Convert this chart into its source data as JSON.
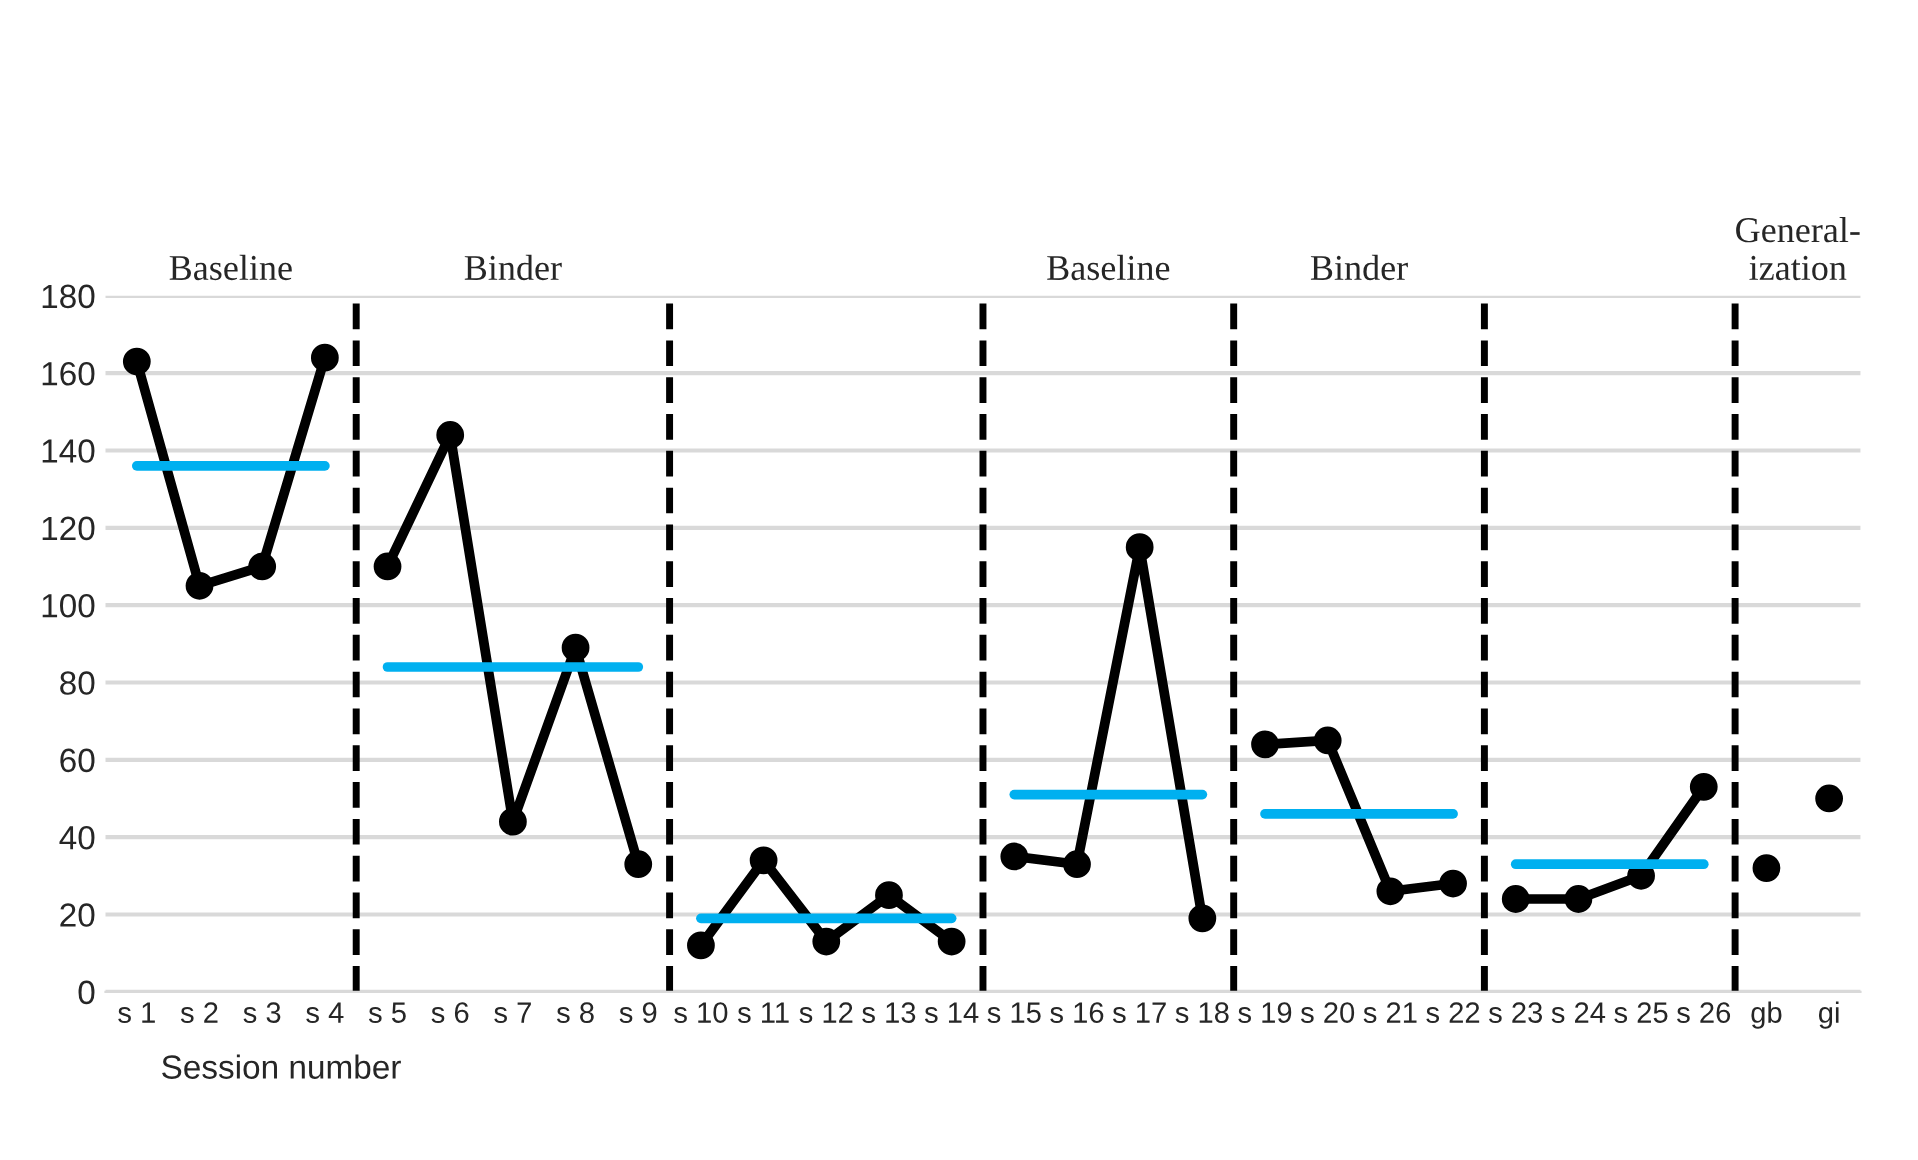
{
  "chart_data": {
    "type": "line",
    "xlabel": "Session number",
    "categories": [
      "s 1",
      "s 2",
      "s 3",
      "s 4",
      "s 5",
      "s 6",
      "s 7",
      "s 8",
      "s 9",
      "s 10",
      "s 11",
      "s 12",
      "s 13",
      "s 14",
      "s 15",
      "s 16",
      "s 17",
      "s 18",
      "s 19",
      "s 20",
      "s 21",
      "s 22",
      "s 23",
      "s 24",
      "s 25",
      "s 26",
      "gb",
      "gi"
    ],
    "series": [
      {
        "color": "#000000",
        "values": [
          163,
          105,
          110,
          164,
          null,
          null,
          null,
          null,
          null,
          null,
          null,
          null,
          null,
          null,
          null,
          null,
          null,
          null,
          null,
          null,
          null,
          null,
          null,
          null,
          null,
          null,
          null,
          null
        ]
      },
      {
        "color": "#000000",
        "values": [
          null,
          null,
          null,
          null,
          110,
          144,
          44,
          89,
          33,
          null,
          null,
          null,
          null,
          null,
          null,
          null,
          null,
          null,
          null,
          null,
          null,
          null,
          null,
          null,
          null,
          null,
          null,
          null
        ]
      },
      {
        "color": "#000000",
        "values": [
          null,
          null,
          null,
          null,
          null,
          null,
          null,
          null,
          null,
          12,
          34,
          13,
          25,
          13,
          null,
          null,
          null,
          null,
          null,
          null,
          null,
          null,
          null,
          null,
          null,
          null,
          null,
          null
        ]
      },
      {
        "color": "#000000",
        "values": [
          null,
          null,
          null,
          null,
          null,
          null,
          null,
          null,
          null,
          null,
          null,
          null,
          null,
          null,
          35,
          33,
          115,
          19,
          null,
          null,
          null,
          null,
          null,
          null,
          null,
          null,
          null,
          null
        ]
      },
      {
        "color": "#000000",
        "values": [
          null,
          null,
          null,
          null,
          null,
          null,
          null,
          null,
          null,
          null,
          null,
          null,
          null,
          null,
          null,
          null,
          null,
          null,
          64,
          65,
          26,
          28,
          null,
          null,
          null,
          null,
          null,
          null
        ]
      },
      {
        "color": "#000000",
        "values": [
          null,
          null,
          null,
          null,
          null,
          null,
          null,
          null,
          null,
          null,
          null,
          null,
          null,
          null,
          null,
          null,
          null,
          null,
          null,
          null,
          null,
          null,
          24,
          24,
          30,
          53,
          null,
          null
        ]
      },
      {
        "type": "scatter",
        "color": "#000000",
        "values": [
          null,
          null,
          null,
          null,
          null,
          null,
          null,
          null,
          null,
          null,
          null,
          null,
          null,
          null,
          null,
          null,
          null,
          null,
          null,
          null,
          null,
          null,
          null,
          null,
          null,
          null,
          32,
          50
        ]
      },
      {
        "color": "#00b0f0",
        "marker": "none",
        "values": [
          136,
          136,
          136,
          136,
          null,
          null,
          null,
          null,
          null,
          null,
          null,
          null,
          null,
          null,
          null,
          null,
          null,
          null,
          null,
          null,
          null,
          null,
          null,
          null,
          null,
          null,
          null,
          null
        ]
      },
      {
        "color": "#00b0f0",
        "marker": "none",
        "values": [
          null,
          null,
          null,
          null,
          84,
          84,
          84,
          84,
          84,
          null,
          null,
          null,
          null,
          null,
          null,
          null,
          null,
          null,
          null,
          null,
          null,
          null,
          null,
          null,
          null,
          null,
          null,
          null
        ]
      },
      {
        "color": "#00b0f0",
        "marker": "none",
        "values": [
          null,
          null,
          null,
          null,
          null,
          null,
          null,
          null,
          null,
          19,
          19,
          19,
          19,
          19,
          null,
          null,
          null,
          null,
          null,
          null,
          null,
          null,
          null,
          null,
          null,
          null,
          null,
          null
        ]
      },
      {
        "color": "#00b0f0",
        "marker": "none",
        "values": [
          null,
          null,
          null,
          null,
          null,
          null,
          null,
          null,
          null,
          null,
          null,
          null,
          null,
          null,
          51,
          51,
          51,
          51,
          null,
          null,
          null,
          null,
          null,
          null,
          null,
          null,
          null,
          null
        ]
      },
      {
        "color": "#00b0f0",
        "marker": "none",
        "values": [
          null,
          null,
          null,
          null,
          null,
          null,
          null,
          null,
          null,
          null,
          null,
          null,
          null,
          null,
          null,
          null,
          null,
          null,
          46,
          46,
          46,
          46,
          null,
          null,
          null,
          null,
          null,
          null
        ]
      },
      {
        "color": "#00b0f0",
        "marker": "none",
        "values": [
          null,
          null,
          null,
          null,
          null,
          null,
          null,
          null,
          null,
          null,
          null,
          null,
          null,
          null,
          null,
          null,
          null,
          null,
          null,
          null,
          null,
          null,
          33,
          33,
          33,
          33,
          null,
          null
        ]
      }
    ],
    "annotations": [
      "Baseline",
      "Binder",
      null,
      "Baseline",
      "Binder",
      null,
      "General-\nization"
    ],
    "marker": "circle",
    "line_style": "solid",
    "ylim": [
      0,
      180
    ],
    "yticks": [
      0,
      20,
      40,
      60,
      80,
      100,
      120,
      140,
      160,
      180
    ],
    "grid": "y",
    "legend": false
  }
}
